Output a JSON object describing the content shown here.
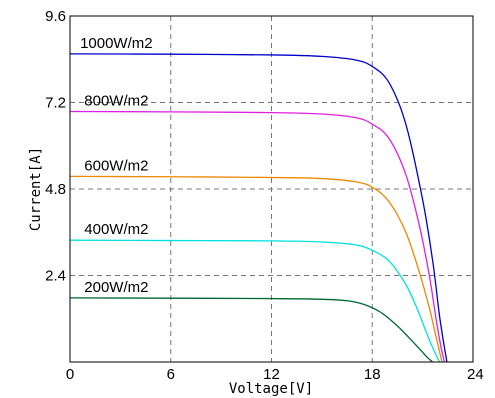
{
  "chart_data": {
    "type": "line",
    "xlabel": "Voltage[V]",
    "ylabel": "Current[A]",
    "xlim": [
      0,
      24
    ],
    "ylim": [
      0,
      9.6
    ],
    "xticks": [
      0,
      6,
      12,
      18,
      24
    ],
    "yticks": [
      2.4,
      4.8,
      7.2,
      9.6
    ],
    "xtick_labels": [
      "0",
      "6",
      "12",
      "18",
      "24"
    ],
    "ytick_labels": [
      "2.4",
      "4.8",
      "7.2",
      "9.6"
    ],
    "grid": true,
    "grid_style": "dashed",
    "series": [
      {
        "name": "1000W/m2",
        "color": "#0000cc",
        "x": [
          0,
          6,
          12,
          15,
          17,
          18,
          19,
          20,
          21,
          21.6,
          22.0,
          22.3,
          22.45
        ],
        "y": [
          8.55,
          8.54,
          8.52,
          8.48,
          8.38,
          8.2,
          7.75,
          6.6,
          4.5,
          2.8,
          1.3,
          0.4,
          0
        ]
      },
      {
        "name": "800W/m2",
        "color": "#e020e0",
        "x": [
          0,
          6,
          12,
          15,
          17,
          18,
          19,
          20,
          20.8,
          21.4,
          21.8,
          22.1,
          22.3
        ],
        "y": [
          6.95,
          6.94,
          6.92,
          6.88,
          6.78,
          6.6,
          6.2,
          5.2,
          3.8,
          2.4,
          1.2,
          0.4,
          0
        ]
      },
      {
        "name": "600W/m2",
        "color": "#ee8800",
        "x": [
          0,
          6,
          12,
          15,
          17,
          18,
          19,
          20,
          20.8,
          21.4,
          21.8,
          22.0,
          22.15
        ],
        "y": [
          5.15,
          5.14,
          5.12,
          5.09,
          5.0,
          4.85,
          4.45,
          3.6,
          2.5,
          1.5,
          0.7,
          0.3,
          0
        ]
      },
      {
        "name": "400W/m2",
        "color": "#00e0e0",
        "x": [
          0,
          6,
          12,
          15,
          17,
          18,
          19,
          20,
          20.7,
          21.2,
          21.6,
          21.85,
          22.0
        ],
        "y": [
          3.38,
          3.37,
          3.36,
          3.33,
          3.25,
          3.1,
          2.8,
          2.15,
          1.45,
          0.85,
          0.4,
          0.15,
          0
        ]
      },
      {
        "name": "200W/m2",
        "color": "#006633",
        "x": [
          0,
          6,
          12,
          15,
          16.5,
          17.5,
          18.5,
          19.5,
          20.3,
          20.9,
          21.3,
          21.6
        ],
        "y": [
          1.78,
          1.77,
          1.76,
          1.74,
          1.7,
          1.6,
          1.38,
          1.0,
          0.62,
          0.32,
          0.12,
          0
        ]
      }
    ],
    "curve_labels": [
      {
        "text": "1000W/m2",
        "x": 0.6,
        "y": 8.55
      },
      {
        "text": "800W/m2",
        "x": 0.85,
        "y": 6.95
      },
      {
        "text": "600W/m2",
        "x": 0.85,
        "y": 5.15
      },
      {
        "text": "400W/m2",
        "x": 0.85,
        "y": 3.38
      },
      {
        "text": "200W/m2",
        "x": 0.85,
        "y": 1.78
      }
    ]
  }
}
